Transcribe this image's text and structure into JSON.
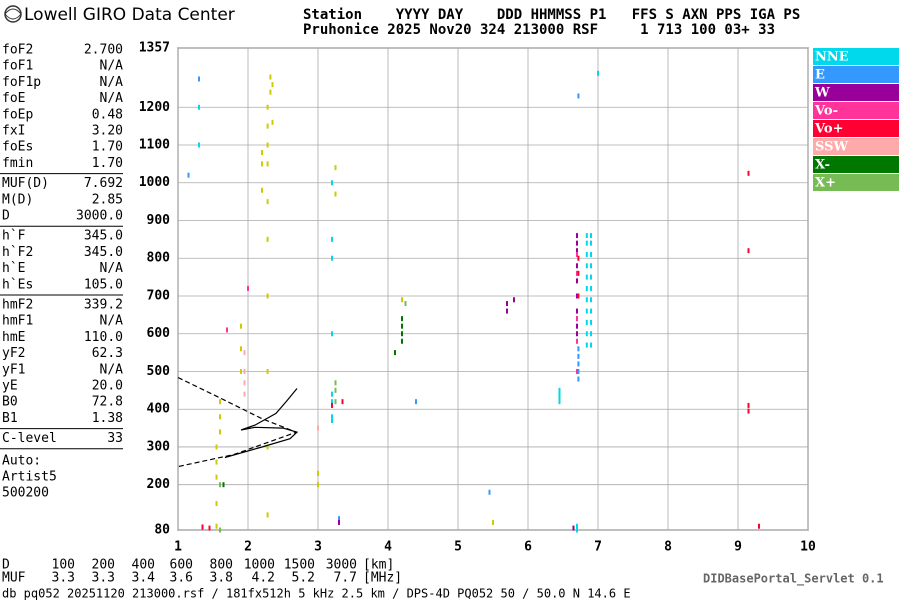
{
  "header": {
    "brand": "Lowell GIRO Data Center",
    "line1": "Station    YYYY DAY    DDD HHMMSS P1   FFS S AXN PPS IGA PS",
    "line2": "Pruhonice 2025 Nov20 324 213000 RSF     1 713 100 03+ 33"
  },
  "parameters": [
    [
      [
        "foF2",
        "2.700"
      ],
      [
        "foF1",
        "N/A"
      ],
      [
        "foF1p",
        "N/A"
      ],
      [
        "foE",
        "N/A"
      ],
      [
        "foEp",
        "0.48"
      ],
      [
        "fxI",
        "3.20"
      ],
      [
        "foEs",
        "1.70"
      ],
      [
        "fmin",
        "1.70"
      ]
    ],
    [
      [
        "MUF(D)",
        "7.692"
      ],
      [
        "M(D)",
        "2.85"
      ],
      [
        "D",
        "3000.0"
      ]
    ],
    [
      [
        "h`F",
        "345.0"
      ],
      [
        "h`F2",
        "345.0"
      ],
      [
        "h`E",
        "N/A"
      ],
      [
        "h`Es",
        "105.0"
      ]
    ],
    [
      [
        "hmF2",
        "339.2"
      ],
      [
        "hmF1",
        "N/A"
      ],
      [
        "hmE",
        "110.0"
      ],
      [
        "yF2",
        "62.3"
      ],
      [
        "yF1",
        "N/A"
      ],
      [
        "yE",
        "20.0"
      ],
      [
        "B0",
        "72.8"
      ],
      [
        "B1",
        "1.38"
      ]
    ],
    [
      [
        "C-level",
        "33"
      ]
    ]
  ],
  "autoscaling": [
    "Auto:",
    "Artist5",
    "500200"
  ],
  "muf_table": [
    {
      "label": "D",
      "values": [
        100,
        200,
        400,
        600,
        800,
        1000,
        1500,
        3000
      ],
      "unit": "[km]"
    },
    {
      "label": "MUF",
      "values": [
        3.3,
        3.3,
        3.4,
        3.6,
        3.8,
        4.2,
        5.2,
        7.7
      ],
      "unit": "[MHz]"
    }
  ],
  "footer": {
    "servlet": "DIDBasePortal_Servlet 0.1",
    "info": "db pq052 20251120 213000.rsf / 181fx512h 5 kHz 2.5 km / DPS-4D PQ052 50 / 50.0 N 14.6 E"
  },
  "chart_data": {
    "type": "scatter",
    "xlim": [
      1,
      10
    ],
    "ylim": [
      80,
      1357
    ],
    "xticks": [
      1,
      2,
      3,
      4,
      5,
      6,
      7,
      8,
      9,
      10
    ],
    "yticks": [
      80,
      200,
      300,
      400,
      500,
      600,
      700,
      800,
      900,
      1000,
      1100,
      1200,
      1357
    ],
    "grid": true,
    "series": [
      {
        "color": "#cccc00",
        "x": [
          1.55,
          1.55,
          1.55,
          1.55,
          1.55,
          1.6,
          1.6,
          1.6,
          2.28,
          2.28,
          2.28,
          2.28,
          2.28,
          2.28,
          2.28,
          2.28,
          2.28,
          2.28,
          2.2,
          2.2,
          2.2,
          2.32,
          2.32,
          2.35,
          2.35,
          1.9,
          1.9,
          1.9,
          3.25,
          3.25,
          4.2,
          5.5,
          3.0,
          3.0
        ],
        "values": [
          90,
          150,
          220,
          260,
          300,
          340,
          380,
          420,
          120,
          300,
          500,
          700,
          850,
          950,
          1050,
          1100,
          1150,
          1200,
          980,
          1050,
          1080,
          1240,
          1280,
          1260,
          1160,
          500,
          560,
          620,
          970,
          1040,
          690,
          100,
          200,
          230
        ]
      },
      {
        "name": "NNE",
        "color": "#00d8ec",
        "x": [
          6.84,
          6.84,
          6.84,
          6.84,
          6.84,
          6.84,
          6.84,
          6.84,
          6.84,
          6.84,
          6.84,
          6.9,
          6.9,
          6.9,
          6.9,
          6.9,
          6.9,
          6.9,
          6.9,
          6.9,
          6.9,
          6.9,
          6.45,
          6.45,
          6.45,
          6.45,
          6.7,
          6.7,
          3.2,
          3.2,
          3.2,
          3.2,
          3.2,
          3.2,
          3.2,
          3.2,
          1.3,
          1.3,
          7.0
        ],
        "values": [
          570,
          600,
          630,
          660,
          690,
          720,
          750,
          780,
          810,
          840,
          860,
          570,
          600,
          630,
          660,
          690,
          720,
          750,
          780,
          810,
          840,
          860,
          420,
          430,
          440,
          450,
          80,
          90,
          370,
          380,
          420,
          440,
          600,
          800,
          850,
          1000,
          1100,
          1200,
          1290
        ]
      },
      {
        "name": "E",
        "color": "#3399ff",
        "x": [
          6.72,
          6.72,
          6.72,
          6.72,
          6.72,
          1.3,
          4.4,
          5.45,
          1.15,
          3.3,
          6.72
        ],
        "values": [
          480,
          500,
          520,
          540,
          560,
          1275,
          420,
          180,
          1020,
          110,
          1230
        ]
      },
      {
        "name": "W",
        "color": "#990099",
        "x": [
          6.7,
          6.7,
          6.7,
          6.7,
          6.7,
          6.7,
          6.7,
          6.7,
          6.7,
          6.7,
          5.7,
          5.7,
          5.8,
          3.3,
          6.65
        ],
        "values": [
          600,
          620,
          640,
          660,
          700,
          740,
          780,
          820,
          840,
          860,
          660,
          680,
          690,
          100,
          85
        ]
      },
      {
        "name": "Vo-",
        "color": "#ff3399",
        "x": [
          6.7,
          6.7,
          6.7,
          6.7,
          6.7,
          1.7,
          1.35,
          2.0
        ],
        "values": [
          500,
          580,
          640,
          760,
          810,
          610,
          88,
          720
        ]
      },
      {
        "name": "Vo+",
        "color": "#ff0033",
        "x": [
          1.35,
          1.45,
          6.72,
          6.72,
          6.72,
          3.2,
          3.35,
          9.15,
          9.15,
          9.15,
          9.15,
          9.3
        ],
        "values": [
          88,
          85,
          700,
          760,
          800,
          410,
          420,
          1025,
          820,
          410,
          395,
          90
        ]
      },
      {
        "name": "SSW",
        "color": "#ffaaaa",
        "x": [
          1.95,
          1.95,
          1.95,
          1.95,
          3.0
        ],
        "values": [
          440,
          470,
          500,
          550,
          350
        ]
      },
      {
        "name": "X-",
        "color": "#007700",
        "x": [
          4.2,
          4.2,
          4.2,
          4.2,
          4.1,
          1.65
        ],
        "values": [
          580,
          600,
          620,
          640,
          550,
          200
        ]
      },
      {
        "name": "X+",
        "color": "#77bb55",
        "x": [
          3.25,
          3.25,
          3.25,
          1.6,
          1.6,
          4.25
        ],
        "values": [
          420,
          450,
          470,
          80,
          200,
          680
        ]
      }
    ],
    "lines": [
      {
        "style": "solid",
        "x": [
          1.67,
          2.2,
          2.6,
          2.7,
          2.5,
          2.1,
          1.9,
          2.1,
          2.4,
          2.55,
          2.7
        ],
        "values": [
          272,
          300,
          322,
          339,
          350,
          352,
          345,
          358,
          389,
          421,
          455
        ]
      },
      {
        "style": "dashed",
        "x": [
          1.0,
          1.6,
          2.2,
          2.69,
          1.8,
          1.0
        ],
        "values": [
          484,
          430,
          375,
          339,
          280,
          248
        ]
      }
    ]
  }
}
